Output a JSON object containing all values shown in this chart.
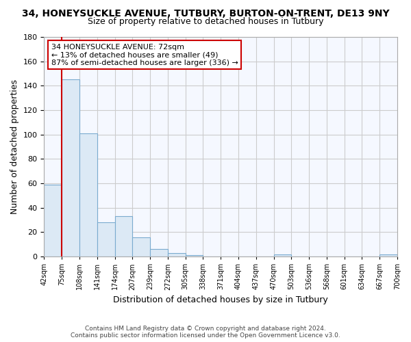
{
  "title": "34, HONEYSUCKLE AVENUE, TUTBURY, BURTON-ON-TRENT, DE13 9NY",
  "subtitle": "Size of property relative to detached houses in Tutbury",
  "xlabel": "Distribution of detached houses by size in Tutbury",
  "ylabel": "Number of detached properties",
  "bar_color": "#dce9f5",
  "bar_edge_color": "#7aabcf",
  "bin_labels": [
    "42sqm",
    "75sqm",
    "108sqm",
    "141sqm",
    "174sqm",
    "207sqm",
    "239sqm",
    "272sqm",
    "305sqm",
    "338sqm",
    "371sqm",
    "404sqm",
    "437sqm",
    "470sqm",
    "503sqm",
    "536sqm",
    "568sqm",
    "601sqm",
    "634sqm",
    "667sqm",
    "700sqm"
  ],
  "bar_heights": [
    59,
    145,
    101,
    28,
    33,
    16,
    6,
    3,
    1,
    0,
    0,
    0,
    0,
    2,
    0,
    0,
    0,
    0,
    0,
    2,
    0
  ],
  "ylim": [
    0,
    180
  ],
  "yticks": [
    0,
    20,
    40,
    60,
    80,
    100,
    120,
    140,
    160,
    180
  ],
  "annotation_line1": "34 HONEYSUCKLE AVENUE: 72sqm",
  "annotation_line2": "← 13% of detached houses are smaller (49)",
  "annotation_line3": "87% of semi-detached houses are larger (336) →",
  "footer_line1": "Contains HM Land Registry data © Crown copyright and database right 2024.",
  "footer_line2": "Contains public sector information licensed under the Open Government Licence v3.0.",
  "grid_color": "#cccccc",
  "annotation_box_facecolor": "#ffffff",
  "annotation_box_edgecolor": "#cc0000",
  "property_line_color": "#cc0000",
  "background_color": "#ffffff",
  "plot_bg_color": "#f5f8ff"
}
